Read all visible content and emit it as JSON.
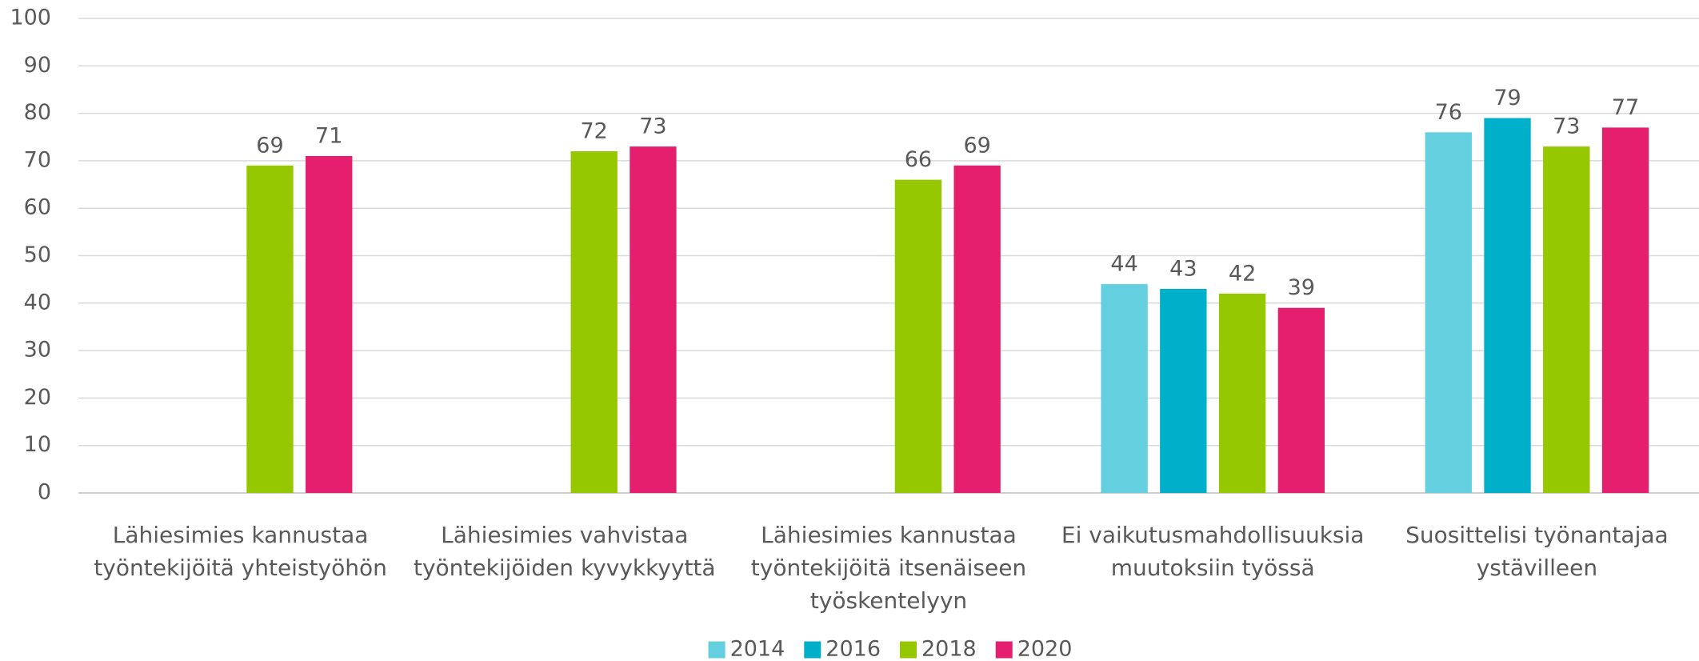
{
  "chart_data": {
    "type": "bar",
    "categories": [
      "Lähiesimies kannustaa työntekijöitä yhteistyöhön",
      "Lähiesimies vahvistaa työntekijöiden kyvykkyyttä",
      "Lähiesimies kannustaa työntekijöitä itsenäiseen työskentelyyn",
      "Ei vaikutusmahdollisuuksia muutoksiin työssä",
      "Suosittelisi työnantajaa ystävilleen"
    ],
    "series": [
      {
        "name": "2014",
        "color": "#64cfde",
        "values": [
          null,
          null,
          null,
          44,
          76
        ]
      },
      {
        "name": "2016",
        "color": "#00afca",
        "values": [
          null,
          null,
          null,
          43,
          79
        ]
      },
      {
        "name": "2018",
        "color": "#96c800",
        "values": [
          69,
          72,
          66,
          42,
          73
        ]
      },
      {
        "name": "2020",
        "color": "#e61e6e",
        "values": [
          71,
          73,
          69,
          39,
          77
        ]
      }
    ],
    "ylim": [
      0,
      100
    ],
    "yticks": [
      0,
      10,
      20,
      30,
      40,
      50,
      60,
      70,
      80,
      90,
      100
    ],
    "grid": true,
    "legend": "bottom"
  }
}
